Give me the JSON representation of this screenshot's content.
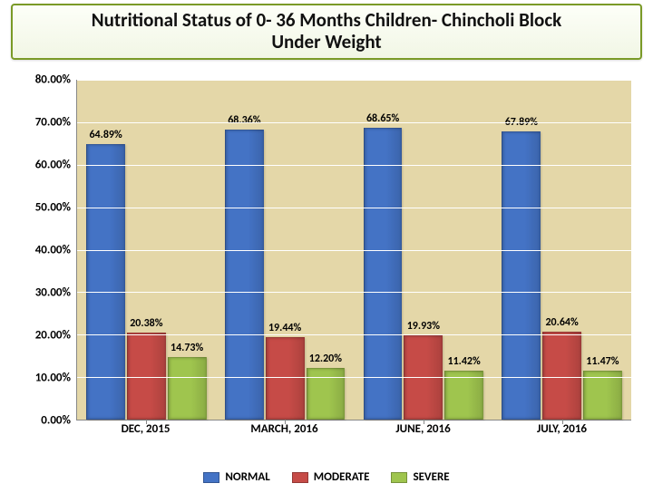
{
  "title": {
    "line1": "Nutritional Status of  0- 36 Months Children- Chincholi Block",
    "line2": "Under Weight",
    "fontsize": 21
  },
  "chart": {
    "type": "bar",
    "background_color": "#e4d7a8",
    "grid_color": "#ffffff",
    "axis_color": "#888888",
    "ylim": [
      0,
      80
    ],
    "ytick_step": 10,
    "y_label_suffix": "%",
    "y_label_decimals": 2,
    "y_label_fontsize": 13,
    "x_label_fontsize": 13,
    "value_label_fontsize": 12,
    "bar_width_pct": 28,
    "categories": [
      "DEC, 2015",
      "MARCH, 2016",
      "JUNE, 2016",
      "JULY, 2016"
    ],
    "series": [
      {
        "name": "NORMAL",
        "color": "#4473c5",
        "values": [
          64.89,
          68.36,
          68.65,
          67.89
        ]
      },
      {
        "name": "MODERATE",
        "color": "#c64b47",
        "values": [
          20.38,
          19.44,
          19.93,
          20.64
        ]
      },
      {
        "name": "SEVERE",
        "color": "#9fc54e",
        "values": [
          14.73,
          12.2,
          11.42,
          11.47
        ]
      }
    ],
    "value_labels": [
      [
        "64.89%",
        "20.38%",
        "14.73%"
      ],
      [
        "68.36%",
        "19.44%",
        "12.20%"
      ],
      [
        "68.65%",
        "19.93%",
        "11.42%"
      ],
      [
        "67.89%",
        "20.64%",
        "11.47%"
      ]
    ],
    "legend_fontsize": 13
  }
}
